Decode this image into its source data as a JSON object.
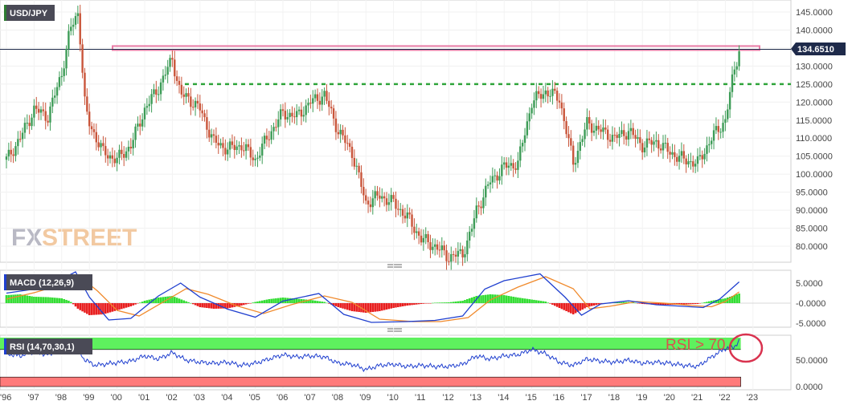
{
  "chart_data": [
    {
      "type": "candlestick",
      "title": "USD/JPY",
      "timeframe_note": "",
      "x_ticks": [
        "'96",
        "'97",
        "'98",
        "'99",
        "'00",
        "'01",
        "'02",
        "'03",
        "'04",
        "'05",
        "'06",
        "'07",
        "'08",
        "'09",
        "'10",
        "'11",
        "'12",
        "'13",
        "'14",
        "'15",
        "'16",
        "'17",
        "'18",
        "'19",
        "'20",
        "'21",
        "'22",
        "'23"
      ],
      "y_ticks": [
        "145.0000",
        "140.0000",
        "135.0000",
        "130.0000",
        "125.0000",
        "120.0000",
        "115.0000",
        "110.0000",
        "105.0000",
        "100.0000",
        "95.0000",
        "90.0000",
        "85.0000",
        "80.0000"
      ],
      "ylim": [
        75,
        147
      ],
      "last_price": "134.6510",
      "resistance_level": 135.0,
      "support_level_dotted": 125.0,
      "close_series": {
        "x": [
          1996.0,
          1996.5,
          1997.0,
          1997.5,
          1998.0,
          1998.3,
          1998.6,
          1998.85,
          1999.0,
          1999.5,
          2000.0,
          2000.5,
          2001.0,
          2001.5,
          2002.0,
          2002.3,
          2002.6,
          2003.0,
          2003.5,
          2004.0,
          2004.5,
          2005.0,
          2005.5,
          2006.0,
          2006.5,
          2007.0,
          2007.5,
          2008.0,
          2008.5,
          2009.0,
          2009.5,
          2010.0,
          2010.5,
          2011.0,
          2011.5,
          2012.0,
          2012.5,
          2012.8,
          2013.0,
          2013.5,
          2014.0,
          2014.5,
          2015.0,
          2015.5,
          2016.0,
          2016.5,
          2017.0,
          2017.5,
          2018.0,
          2018.5,
          2019.0,
          2019.5,
          2020.0,
          2020.5,
          2021.0,
          2021.5,
          2022.0,
          2022.3,
          2022.5
        ],
        "y": [
          104,
          110,
          118,
          116,
          128,
          140,
          145,
          118,
          114,
          106,
          104,
          108,
          118,
          124,
          132,
          122,
          121,
          118,
          109,
          107,
          108,
          104,
          111,
          117,
          116,
          120,
          122,
          112,
          106,
          92,
          94,
          92,
          88,
          82,
          80,
          77,
          78,
          84,
          90,
          98,
          102,
          103,
          120,
          123,
          121,
          103,
          114,
          112,
          110,
          112,
          108,
          109,
          106,
          104,
          103,
          110,
          115,
          128,
          134.65
        ]
      },
      "series": [
        {
          "name": "USD/JPY",
          "type": "candles"
        }
      ],
      "colors": {
        "up": "#3d9c57",
        "down": "#c9553a",
        "resistance": "#e87ca6",
        "dotted": "#2fa43a",
        "label_bg": "#4a4a56",
        "price_tag": "#1e2a4a"
      }
    },
    {
      "type": "macd",
      "title": "MACD (12,26,9)",
      "y_ticks": [
        "5.0000",
        "-0.0000",
        "-5.0000"
      ],
      "ylim": [
        -5.7,
        7.5
      ],
      "histogram": {
        "x": [
          1996.0,
          1996.5,
          1997.0,
          1997.5,
          1998.0,
          1998.3,
          1998.6,
          1999.0,
          1999.5,
          2000.0,
          2000.5,
          2001.0,
          2001.5,
          2002.0,
          2002.3,
          2002.6,
          2003.0,
          2003.5,
          2004.0,
          2004.5,
          2005.0,
          2005.5,
          2006.0,
          2006.5,
          2007.0,
          2007.5,
          2008.0,
          2008.5,
          2009.0,
          2009.5,
          2010.0,
          2010.5,
          2011.0,
          2011.5,
          2012.0,
          2012.5,
          2013.0,
          2013.5,
          2014.0,
          2014.5,
          2015.0,
          2015.5,
          2016.0,
          2016.5,
          2017.0,
          2017.5,
          2018.0,
          2018.5,
          2019.0,
          2019.5,
          2020.0,
          2020.5,
          2021.0,
          2021.5,
          2022.0,
          2022.5
        ],
        "values": [
          2.0,
          2.2,
          1.6,
          1.5,
          1.2,
          0.5,
          -1.5,
          -3.0,
          -2.8,
          -1.8,
          -0.8,
          0.6,
          1.4,
          1.8,
          1.0,
          0.2,
          -1.0,
          -1.4,
          -1.3,
          -0.6,
          0.3,
          1.0,
          1.4,
          1.1,
          0.8,
          0.3,
          -1.0,
          -2.0,
          -2.4,
          -2.0,
          -1.2,
          -0.6,
          -0.2,
          0.1,
          0.2,
          0.6,
          1.8,
          2.2,
          2.0,
          1.4,
          0.9,
          0.4,
          -1.2,
          -2.8,
          -1.0,
          -0.2,
          0.2,
          0.3,
          -0.2,
          -0.4,
          -0.4,
          -0.3,
          -0.2,
          0.6,
          1.2,
          2.4
        ]
      },
      "macd_line": {
        "x": [
          1996.0,
          1997.0,
          1998.0,
          1998.5,
          1999.0,
          1999.7,
          2000.5,
          2001.5,
          2002.3,
          2003.0,
          2004.0,
          2005.0,
          2006.0,
          2007.3,
          2008.2,
          2009.2,
          2010.5,
          2011.5,
          2012.5,
          2013.3,
          2014.0,
          2015.3,
          2016.2,
          2016.8,
          2017.5,
          2018.5,
          2019.5,
          2020.5,
          2021.2,
          2021.8,
          2022.5
        ],
        "values": [
          2.5,
          3.5,
          6.0,
          7.8,
          1.5,
          -4.2,
          -3.8,
          1.8,
          5.0,
          1.5,
          -1.5,
          -3.5,
          0.5,
          2.4,
          -2.8,
          -4.8,
          -4.6,
          -4.3,
          -3.2,
          3.5,
          5.6,
          7.3,
          1.5,
          -3.0,
          -0.2,
          0.6,
          -0.4,
          -0.8,
          -1.1,
          1.0,
          5.3
        ]
      },
      "signal_line": {
        "x": [
          1996.0,
          1997.0,
          1998.0,
          1998.7,
          1999.3,
          2000.0,
          2000.8,
          2001.7,
          2002.5,
          2003.3,
          2004.3,
          2005.3,
          2006.3,
          2007.5,
          2008.5,
          2009.5,
          2010.7,
          2011.7,
          2012.7,
          2013.5,
          2014.5,
          2015.5,
          2016.5,
          2017.1,
          2017.8,
          2018.8,
          2019.8,
          2020.8,
          2021.5,
          2022.0,
          2022.5
        ],
        "values": [
          1.0,
          2.6,
          4.6,
          6.4,
          3.0,
          -1.8,
          -3.2,
          0.4,
          3.6,
          2.2,
          -0.6,
          -2.6,
          -0.4,
          1.8,
          0.2,
          -4.0,
          -4.6,
          -4.6,
          -3.6,
          0.8,
          4.0,
          6.6,
          3.6,
          -1.4,
          -0.8,
          0.4,
          0.0,
          -0.6,
          -0.9,
          0.4,
          2.8
        ]
      },
      "colors": {
        "hist_pos": "#33dd33",
        "hist_neg": "#e81e1e",
        "macd": "#1f3fcf",
        "signal": "#f08a2c"
      }
    },
    {
      "type": "rsi",
      "title": "RSI (14,70,30,1)",
      "y_ticks": [
        "50.0000",
        "0.0000"
      ],
      "ylim": [
        0,
        100
      ],
      "overbought": 70,
      "oversold": 30,
      "rsi_line": {
        "x": [
          1996.0,
          1996.5,
          1997.0,
          1997.5,
          1998.0,
          1998.5,
          1998.8,
          1999.2,
          1999.8,
          2000.5,
          2001.0,
          2001.5,
          2002.0,
          2002.5,
          2003.0,
          2003.5,
          2004.0,
          2004.5,
          2005.0,
          2005.5,
          2006.0,
          2006.5,
          2007.0,
          2007.5,
          2008.0,
          2008.5,
          2009.0,
          2009.5,
          2010.0,
          2010.5,
          2011.0,
          2011.5,
          2012.0,
          2012.5,
          2013.0,
          2013.5,
          2014.0,
          2014.5,
          2015.0,
          2015.5,
          2016.0,
          2016.5,
          2017.0,
          2017.5,
          2018.0,
          2018.5,
          2019.0,
          2019.5,
          2020.0,
          2020.5,
          2021.0,
          2021.5,
          2022.0,
          2022.3,
          2022.5
        ],
        "values": [
          62,
          58,
          66,
          60,
          72,
          80,
          52,
          40,
          44,
          48,
          58,
          52,
          64,
          50,
          46,
          44,
          46,
          40,
          44,
          52,
          60,
          56,
          58,
          56,
          44,
          42,
          32,
          40,
          42,
          38,
          40,
          38,
          38,
          42,
          58,
          52,
          58,
          60,
          70,
          62,
          46,
          40,
          52,
          48,
          46,
          50,
          44,
          46,
          44,
          40,
          38,
          56,
          72,
          74,
          86
        ]
      },
      "annotation": "RSI > 70",
      "colors": {
        "line": "#1f3fcf",
        "overbought_band": "#5ef15e",
        "oversold_band": "#ff7a7a",
        "circle": "#d9334f"
      }
    }
  ],
  "brand": {
    "fx": "FX",
    "street": "STREET"
  }
}
